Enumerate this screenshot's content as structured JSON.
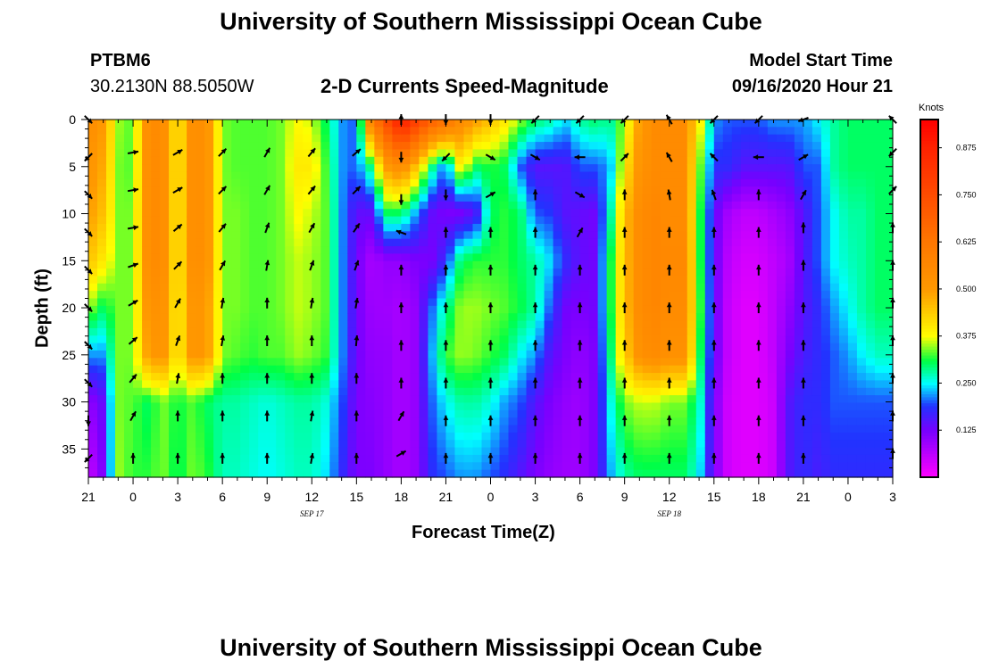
{
  "header": {
    "title": "University of Southern Mississippi Ocean Cube",
    "station_id": "PTBM6",
    "station_coords": "30.2130N 88.5050W",
    "plot_title": "2-D Currents Speed-Magnitude",
    "model_start_label": "Model Start Time",
    "model_start_value": "09/16/2020 Hour 21"
  },
  "footer": {
    "title": "University of Southern Mississippi Ocean Cube"
  },
  "colors": {
    "background": "#ffffff",
    "arrow": "#000000"
  },
  "chart_data": {
    "type": "heatmap",
    "title": "2-D Currents Speed-Magnitude",
    "xlabel": "Forecast Time(Z)",
    "ylabel": "Depth (ft)",
    "x_ticks": [
      "21",
      "0",
      "3",
      "6",
      "9",
      "12",
      "15",
      "18",
      "21",
      "0",
      "3",
      "6",
      "9",
      "12",
      "15",
      "18",
      "21",
      "0",
      "3"
    ],
    "x_range_hours": [
      0,
      54
    ],
    "date_labels": [
      {
        "text": "SEP 17",
        "hour": 15
      },
      {
        "text": "SEP 18",
        "hour": 39
      }
    ],
    "y_ticks": [
      0,
      5,
      10,
      15,
      20,
      25,
      30,
      35
    ],
    "y_range_ft": [
      0,
      38
    ],
    "y_inverted": true,
    "colorbar": {
      "unit": "Knots",
      "ticks": [
        "0.875",
        "0.750",
        "0.625",
        "0.500",
        "0.375",
        "0.250",
        "0.125"
      ],
      "tick_values": [
        0.875,
        0.75,
        0.625,
        0.5,
        0.375,
        0.25,
        0.125
      ],
      "range": [
        0,
        0.95
      ],
      "stops": [
        {
          "v": 0.0,
          "color": "#ff00ff"
        },
        {
          "v": 0.06,
          "color": "#bf00ff"
        },
        {
          "v": 0.125,
          "color": "#7700ff"
        },
        {
          "v": 0.19,
          "color": "#2233ff"
        },
        {
          "v": 0.25,
          "color": "#00ffff"
        },
        {
          "v": 0.31,
          "color": "#00ff44"
        },
        {
          "v": 0.375,
          "color": "#ffff00"
        },
        {
          "v": 0.5,
          "color": "#ff9900"
        },
        {
          "v": 0.625,
          "color": "#ff7700"
        },
        {
          "v": 0.875,
          "color": "#ff2200"
        },
        {
          "v": 0.95,
          "color": "#ff0000"
        }
      ]
    },
    "columns": [
      {
        "hour": 0,
        "speed": [
          0.55,
          0.52,
          0.5,
          0.45,
          0.35,
          0.22,
          0.1,
          0.05
        ]
      },
      {
        "hour": 1,
        "speed": [
          0.5,
          0.48,
          0.45,
          0.4,
          0.3,
          0.22,
          0.14,
          0.12
        ]
      },
      {
        "hour": 2,
        "speed": [
          0.35,
          0.34,
          0.34,
          0.34,
          0.34,
          0.34,
          0.34,
          0.35
        ]
      },
      {
        "hour": 3,
        "speed": [
          0.33,
          0.33,
          0.34,
          0.34,
          0.34,
          0.34,
          0.33,
          0.32
        ]
      },
      {
        "hour": 4,
        "speed": [
          0.55,
          0.55,
          0.55,
          0.55,
          0.52,
          0.5,
          0.3,
          0.32
        ]
      },
      {
        "hour": 5,
        "speed": [
          0.55,
          0.55,
          0.55,
          0.55,
          0.53,
          0.52,
          0.34,
          0.34
        ]
      },
      {
        "hour": 6,
        "speed": [
          0.38,
          0.38,
          0.38,
          0.38,
          0.38,
          0.38,
          0.31,
          0.3
        ]
      },
      {
        "hour": 7,
        "speed": [
          0.55,
          0.55,
          0.55,
          0.55,
          0.52,
          0.52,
          0.33,
          0.34
        ]
      },
      {
        "hour": 8,
        "speed": [
          0.52,
          0.52,
          0.52,
          0.52,
          0.5,
          0.5,
          0.3,
          0.32
        ]
      },
      {
        "hour": 9,
        "speed": [
          0.34,
          0.34,
          0.34,
          0.34,
          0.34,
          0.34,
          0.28,
          0.27
        ]
      },
      {
        "hour": 10,
        "speed": [
          0.33,
          0.33,
          0.34,
          0.34,
          0.34,
          0.33,
          0.28,
          0.27
        ]
      },
      {
        "hour": 11,
        "speed": [
          0.33,
          0.33,
          0.33,
          0.33,
          0.33,
          0.32,
          0.27,
          0.26
        ]
      },
      {
        "hour": 12,
        "speed": [
          0.33,
          0.33,
          0.33,
          0.33,
          0.33,
          0.33,
          0.26,
          0.25
        ]
      },
      {
        "hour": 13,
        "speed": [
          0.34,
          0.34,
          0.34,
          0.34,
          0.34,
          0.33,
          0.27,
          0.26
        ]
      },
      {
        "hour": 14,
        "speed": [
          0.38,
          0.4,
          0.38,
          0.36,
          0.36,
          0.35,
          0.28,
          0.27
        ]
      },
      {
        "hour": 15,
        "speed": [
          0.36,
          0.4,
          0.36,
          0.35,
          0.35,
          0.34,
          0.28,
          0.27
        ]
      },
      {
        "hour": 16,
        "speed": [
          0.3,
          0.32,
          0.33,
          0.33,
          0.33,
          0.32,
          0.26,
          0.24
        ]
      },
      {
        "hour": 17,
        "speed": [
          0.22,
          0.22,
          0.22,
          0.22,
          0.22,
          0.22,
          0.2,
          0.18
        ]
      },
      {
        "hour": 18,
        "speed": [
          0.2,
          0.2,
          0.14,
          0.13,
          0.13,
          0.13,
          0.12,
          0.12
        ]
      },
      {
        "hour": 19,
        "speed": [
          0.6,
          0.3,
          0.14,
          0.08,
          0.09,
          0.1,
          0.11,
          0.12
        ]
      },
      {
        "hour": 20,
        "speed": [
          0.75,
          0.5,
          0.3,
          0.1,
          0.09,
          0.1,
          0.1,
          0.1
        ]
      },
      {
        "hour": 21,
        "speed": [
          0.9,
          0.55,
          0.3,
          0.1,
          0.08,
          0.08,
          0.08,
          0.08
        ]
      },
      {
        "hour": 22,
        "speed": [
          0.8,
          0.45,
          0.22,
          0.12,
          0.1,
          0.1,
          0.1,
          0.1
        ]
      },
      {
        "hour": 23,
        "speed": [
          0.7,
          0.3,
          0.14,
          0.12,
          0.2,
          0.22,
          0.2,
          0.18
        ]
      },
      {
        "hour": 24,
        "speed": [
          0.65,
          0.2,
          0.12,
          0.18,
          0.28,
          0.32,
          0.25,
          0.2
        ]
      },
      {
        "hour": 25,
        "speed": [
          0.55,
          0.4,
          0.12,
          0.3,
          0.35,
          0.35,
          0.28,
          0.22
        ]
      },
      {
        "hour": 26,
        "speed": [
          0.5,
          0.3,
          0.15,
          0.32,
          0.35,
          0.34,
          0.28,
          0.22
        ]
      },
      {
        "hour": 27,
        "speed": [
          0.45,
          0.32,
          0.3,
          0.32,
          0.34,
          0.32,
          0.26,
          0.2
        ]
      },
      {
        "hour": 28,
        "speed": [
          0.4,
          0.3,
          0.32,
          0.32,
          0.33,
          0.3,
          0.22,
          0.18
        ]
      },
      {
        "hour": 29,
        "speed": [
          0.35,
          0.2,
          0.3,
          0.3,
          0.31,
          0.25,
          0.2,
          0.15
        ]
      },
      {
        "hour": 30,
        "speed": [
          0.3,
          0.15,
          0.2,
          0.28,
          0.28,
          0.22,
          0.15,
          0.12
        ]
      },
      {
        "hour": 31,
        "speed": [
          0.28,
          0.15,
          0.19,
          0.24,
          0.2,
          0.15,
          0.12,
          0.1
        ]
      },
      {
        "hour": 32,
        "speed": [
          0.24,
          0.15,
          0.15,
          0.18,
          0.13,
          0.12,
          0.1,
          0.09
        ]
      },
      {
        "hour": 33,
        "speed": [
          0.28,
          0.2,
          0.14,
          0.14,
          0.12,
          0.1,
          0.09,
          0.09
        ]
      },
      {
        "hour": 34,
        "speed": [
          0.3,
          0.2,
          0.13,
          0.13,
          0.13,
          0.12,
          0.12,
          0.12
        ]
      },
      {
        "hour": 35,
        "speed": [
          0.28,
          0.22,
          0.26,
          0.3,
          0.3,
          0.28,
          0.25,
          0.22
        ]
      },
      {
        "hour": 36,
        "speed": [
          0.35,
          0.4,
          0.45,
          0.45,
          0.45,
          0.43,
          0.34,
          0.28
        ]
      },
      {
        "hour": 37,
        "speed": [
          0.5,
          0.52,
          0.55,
          0.55,
          0.55,
          0.53,
          0.36,
          0.3
        ]
      },
      {
        "hour": 38,
        "speed": [
          0.55,
          0.55,
          0.57,
          0.57,
          0.57,
          0.55,
          0.36,
          0.3
        ]
      },
      {
        "hour": 39,
        "speed": [
          0.55,
          0.55,
          0.55,
          0.56,
          0.55,
          0.53,
          0.34,
          0.3
        ]
      },
      {
        "hour": 40,
        "speed": [
          0.55,
          0.55,
          0.55,
          0.56,
          0.55,
          0.53,
          0.34,
          0.3
        ]
      },
      {
        "hour": 41,
        "speed": [
          0.4,
          0.35,
          0.33,
          0.33,
          0.34,
          0.32,
          0.28,
          0.25
        ]
      },
      {
        "hour": 42,
        "speed": [
          0.22,
          0.18,
          0.14,
          0.14,
          0.14,
          0.14,
          0.12,
          0.12
        ]
      },
      {
        "hour": 43,
        "speed": [
          0.2,
          0.18,
          0.08,
          0.06,
          0.05,
          0.05,
          0.04,
          0.04
        ]
      },
      {
        "hour": 44,
        "speed": [
          0.2,
          0.15,
          0.06,
          0.04,
          0.03,
          0.03,
          0.03,
          0.03
        ]
      },
      {
        "hour": 45,
        "speed": [
          0.2,
          0.15,
          0.06,
          0.04,
          0.03,
          0.03,
          0.03,
          0.03
        ]
      },
      {
        "hour": 46,
        "speed": [
          0.22,
          0.15,
          0.08,
          0.06,
          0.06,
          0.06,
          0.05,
          0.05
        ]
      },
      {
        "hour": 47,
        "speed": [
          0.22,
          0.15,
          0.1,
          0.08,
          0.1,
          0.12,
          0.15,
          0.15
        ]
      },
      {
        "hour": 48,
        "speed": [
          0.22,
          0.2,
          0.15,
          0.15,
          0.15,
          0.16,
          0.18,
          0.18
        ]
      },
      {
        "hour": 49,
        "speed": [
          0.25,
          0.2,
          0.2,
          0.2,
          0.18,
          0.18,
          0.18,
          0.16
        ]
      },
      {
        "hour": 50,
        "speed": [
          0.28,
          0.28,
          0.25,
          0.25,
          0.22,
          0.2,
          0.2,
          0.18
        ]
      },
      {
        "hour": 51,
        "speed": [
          0.3,
          0.3,
          0.28,
          0.27,
          0.25,
          0.22,
          0.2,
          0.18
        ]
      },
      {
        "hour": 52,
        "speed": [
          0.3,
          0.3,
          0.28,
          0.28,
          0.28,
          0.25,
          0.2,
          0.18
        ]
      },
      {
        "hour": 53,
        "speed": [
          0.3,
          0.3,
          0.3,
          0.3,
          0.3,
          0.27,
          0.2,
          0.18
        ]
      },
      {
        "hour": 54,
        "speed": [
          0.3,
          0.3,
          0.3,
          0.3,
          0.3,
          0.27,
          0.2,
          0.18
        ]
      }
    ],
    "arrows": [
      {
        "hour": 0,
        "depths": [
          0,
          4,
          8,
          12,
          16,
          20,
          24,
          28,
          32,
          36
        ],
        "angles": [
          45,
          135,
          45,
          45,
          45,
          45,
          45,
          45,
          90,
          135
        ]
      },
      {
        "hour": 3,
        "depths": [
          3.5,
          7.5,
          11.5,
          15.5,
          19.5,
          23.5,
          27.5,
          31.5,
          36
        ],
        "angles": [
          -10,
          -10,
          -10,
          -20,
          -30,
          -40,
          -50,
          -60,
          -90
        ]
      },
      {
        "hour": 6,
        "depths": [
          3.5,
          7.5,
          11.5,
          15.5,
          19.5,
          23.5,
          27.5,
          31.5,
          36
        ],
        "angles": [
          -30,
          -30,
          -40,
          -45,
          -60,
          -70,
          -80,
          -90,
          -90
        ]
      },
      {
        "hour": 9,
        "depths": [
          3.5,
          7.5,
          11.5,
          15.5,
          19.5,
          23.5,
          27.5,
          31.5,
          36
        ],
        "angles": [
          -45,
          -45,
          -50,
          -60,
          -80,
          -80,
          -90,
          -90,
          -90
        ]
      },
      {
        "hour": 12,
        "depths": [
          3.5,
          7.5,
          11.5,
          15.5,
          19.5,
          23.5,
          27.5,
          31.5,
          36
        ],
        "angles": [
          -60,
          -60,
          -70,
          -80,
          -90,
          -90,
          -90,
          -90,
          -90
        ]
      },
      {
        "hour": 15,
        "depths": [
          3.5,
          7.5,
          11.5,
          15.5,
          19.5,
          23.5,
          27.5,
          31.5,
          36
        ],
        "angles": [
          -50,
          -50,
          -60,
          -70,
          -80,
          -90,
          -90,
          -80,
          -80
        ]
      },
      {
        "hour": 18,
        "depths": [
          3.5,
          7.5,
          11.5,
          15.5,
          19.5,
          23.5,
          27.5,
          31.5,
          36
        ],
        "angles": [
          -40,
          -45,
          -55,
          -70,
          -80,
          -85,
          -90,
          -90,
          -90
        ]
      },
      {
        "hour": 21,
        "depths": [
          0,
          4,
          8.5,
          12,
          16,
          20,
          24,
          28,
          31.5,
          35.5
        ],
        "angles": [
          -90,
          90,
          90,
          200,
          -90,
          -90,
          -90,
          -90,
          -60,
          -30
        ]
      },
      {
        "hour": 24,
        "depths": [
          0,
          4,
          8,
          12,
          16,
          20,
          24,
          28,
          32,
          36
        ],
        "angles": [
          90,
          135,
          90,
          -90,
          -90,
          -90,
          -90,
          -90,
          -90,
          -90
        ]
      },
      {
        "hour": 27,
        "depths": [
          0,
          4,
          8,
          12,
          16,
          20,
          24,
          28,
          32,
          36
        ],
        "angles": [
          90,
          30,
          -30,
          -90,
          -90,
          -90,
          -90,
          -90,
          -90,
          -90
        ]
      },
      {
        "hour": 30,
        "depths": [
          0,
          4,
          8,
          12,
          16,
          20,
          24,
          28,
          32,
          36
        ],
        "angles": [
          135,
          30,
          -90,
          -90,
          -90,
          -90,
          -90,
          -90,
          -90,
          -90
        ]
      },
      {
        "hour": 33,
        "depths": [
          0,
          4,
          8,
          12,
          16,
          20,
          24,
          28,
          32,
          36
        ],
        "angles": [
          135,
          180,
          30,
          -60,
          -90,
          -90,
          -90,
          -90,
          -90,
          -90
        ]
      },
      {
        "hour": 36,
        "depths": [
          0,
          4,
          8,
          12,
          16,
          20,
          24,
          28,
          32,
          36
        ],
        "angles": [
          135,
          -45,
          -90,
          -90,
          -90,
          -90,
          -90,
          -90,
          -90,
          -90
        ]
      },
      {
        "hour": 39,
        "depths": [
          0,
          4,
          8,
          12,
          16,
          20,
          24,
          28,
          32,
          36
        ],
        "angles": [
          -120,
          -120,
          -100,
          -90,
          -90,
          -90,
          -90,
          -90,
          -90,
          -90
        ]
      },
      {
        "hour": 42,
        "depths": [
          0,
          4,
          8,
          12,
          16,
          20,
          24,
          28,
          32,
          36
        ],
        "angles": [
          135,
          -135,
          -110,
          -90,
          -90,
          -90,
          -90,
          -90,
          -90,
          -90
        ]
      },
      {
        "hour": 45,
        "depths": [
          0,
          4,
          8,
          12,
          16,
          20,
          24,
          28,
          32,
          36
        ],
        "angles": [
          135,
          180,
          -90,
          -90,
          -90,
          -90,
          -90,
          -90,
          -90,
          -90
        ]
      },
      {
        "hour": 48,
        "depths": [
          0,
          4,
          8,
          11.5,
          15.5,
          20,
          24,
          28,
          32,
          36
        ],
        "angles": [
          160,
          -30,
          -60,
          -90,
          -90,
          -90,
          -90,
          -90,
          -90,
          -90
        ]
      },
      {
        "hour": 54,
        "depths": [
          0,
          3.5,
          7.5,
          11.5,
          15.5,
          19.5,
          23.5,
          27.5,
          31.5,
          35.5
        ],
        "angles": [
          -135,
          135,
          -45,
          -90,
          -90,
          -90,
          -90,
          -90,
          -90,
          -90
        ]
      }
    ]
  }
}
